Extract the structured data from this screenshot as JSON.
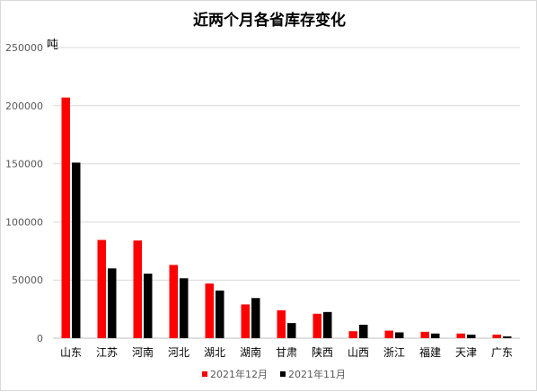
{
  "chart_data": {
    "type": "bar",
    "title": "近两个月各省库存变化",
    "ylabel": "吨",
    "xlabel": "",
    "ylim": [
      0,
      250000
    ],
    "y_ticks": [
      0,
      50000,
      100000,
      150000,
      200000,
      250000
    ],
    "grid": true,
    "legend_position": "bottom",
    "categories": [
      "山东",
      "江苏",
      "河南",
      "河北",
      "湖北",
      "湖南",
      "甘肃",
      "陕西",
      "山西",
      "浙江",
      "福建",
      "天津",
      "广东"
    ],
    "series": [
      {
        "name": "2021年12月",
        "color": "#ff0000",
        "values": [
          207000,
          84500,
          84000,
          63000,
          47000,
          29000,
          24000,
          21000,
          6000,
          6500,
          5500,
          4000,
          3000
        ]
      },
      {
        "name": "2021年11月",
        "color": "#000000",
        "values": [
          151000,
          60000,
          55500,
          51500,
          41000,
          34500,
          13000,
          22500,
          11500,
          5000,
          4000,
          3000,
          1500
        ]
      }
    ]
  }
}
